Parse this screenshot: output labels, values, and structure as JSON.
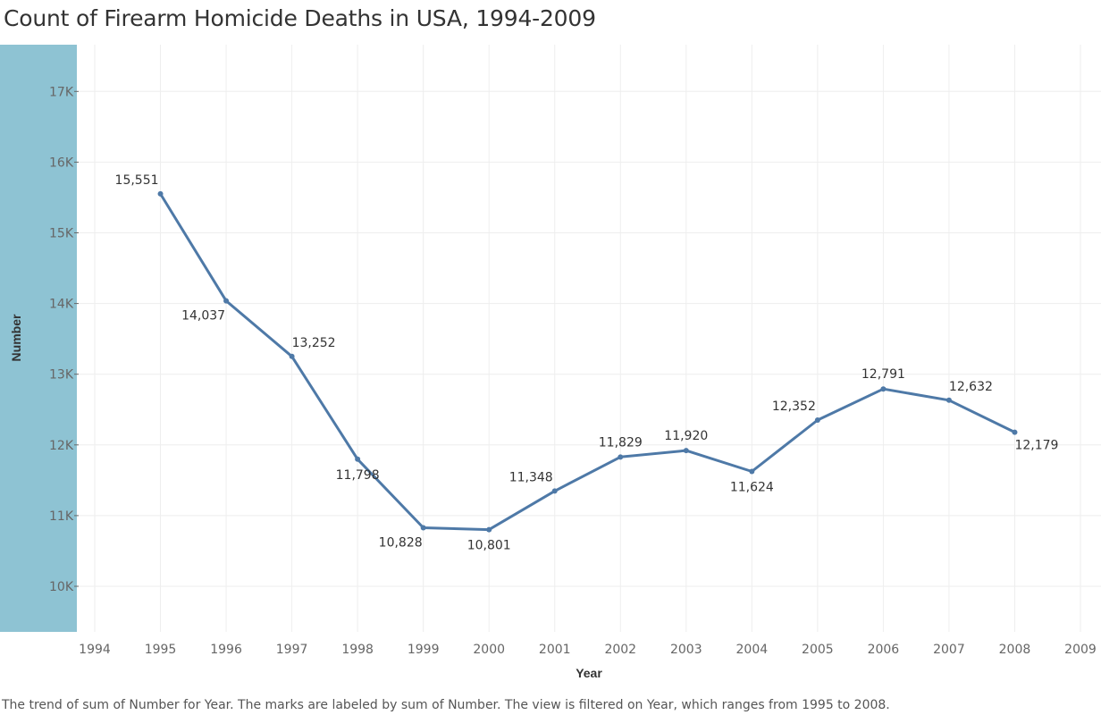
{
  "title": "Count of Firearm Homicide Deaths in USA, 1994-2009",
  "caption": "The trend of sum of Number for Year.  The marks are labeled by sum of Number. The view is filtered on Year, which ranges from 1995 to 2008.",
  "colors": {
    "line": "#4e79a7",
    "y_band": "#8ec3d3",
    "grid": "#eeeeee",
    "text": "#333333",
    "tick_text": "#666666"
  },
  "chart_data": {
    "type": "line",
    "xlabel": "Year",
    "ylabel": "Number",
    "xlim": [
      1994,
      2009
    ],
    "ylim": [
      9300,
      17650
    ],
    "x_ticks": [
      "1994",
      "1995",
      "1996",
      "1997",
      "1998",
      "1999",
      "2000",
      "2001",
      "2002",
      "2003",
      "2004",
      "2005",
      "2006",
      "2007",
      "2008",
      "2009"
    ],
    "y_ticks": [
      {
        "value": 10000,
        "label": "10K"
      },
      {
        "value": 11000,
        "label": "11K"
      },
      {
        "value": 12000,
        "label": "12K"
      },
      {
        "value": 13000,
        "label": "13K"
      },
      {
        "value": 14000,
        "label": "14K"
      },
      {
        "value": 15000,
        "label": "15K"
      },
      {
        "value": 16000,
        "label": "16K"
      },
      {
        "value": 17000,
        "label": "17K"
      }
    ],
    "grid": true,
    "series": [
      {
        "x": [
          1995,
          1996,
          1997,
          1998,
          1999,
          2000,
          2001,
          2002,
          2003,
          2004,
          2005,
          2006,
          2007,
          2008
        ],
        "values": [
          15551,
          14037,
          13252,
          11798,
          10828,
          10801,
          11348,
          11829,
          11920,
          11624,
          12352,
          12791,
          12632,
          12179
        ],
        "labels": [
          "15,551",
          "14,037",
          "13,252",
          "11,798",
          "10,828",
          "10,801",
          "11,348",
          "11,829",
          "11,920",
          "11,624",
          "12,352",
          "12,791",
          "12,632",
          "12,179"
        ],
        "label_positions": [
          "above-left",
          "below-left",
          "above-right",
          "below",
          "below-left",
          "below",
          "above-left",
          "above",
          "above",
          "below",
          "above-left",
          "above",
          "above-right",
          "below-right"
        ]
      }
    ]
  }
}
